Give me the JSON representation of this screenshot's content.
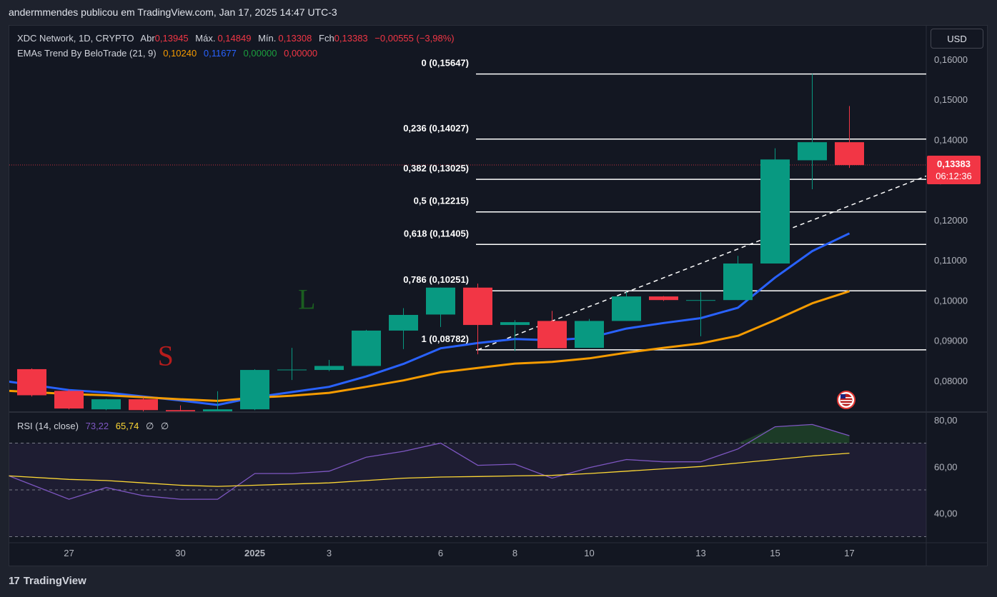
{
  "header": {
    "publish_line": "andermmendes publicou em TradingView.com, Jan 17, 2025 14:47 UTC-3"
  },
  "legend": {
    "symbol": "XDC Network, 1D, CRYPTO",
    "open_label": "Abr",
    "open_value": "0,13945",
    "high_label": "Máx.",
    "high_value": "0,14849",
    "low_label": "Mín.",
    "low_value": "0,13308",
    "close_label": "Fch",
    "close_value": "0,13383",
    "change": "−0,00555 (−3,98%)",
    "indicator_name": "EMAs Trend By BeloTrade (21, 9)",
    "ema21_value": "0,10240",
    "ema9_value": "0,11677",
    "extra1": "0,00000",
    "extra2": "0,00000"
  },
  "rsi_legend": {
    "name": "RSI (14, close)",
    "rsi_value": "73,22",
    "ma_value": "65,74",
    "extra1": "∅",
    "extra2": "∅"
  },
  "currency_button": "USD",
  "price_tag": {
    "price": "0,13383",
    "countdown": "06:12:36"
  },
  "brand": {
    "logo": "17",
    "name": "TradingView"
  },
  "colors": {
    "up": "#089981",
    "down": "#f23645",
    "ema9": "#2962ff",
    "ema21": "#f59b00",
    "rsi": "#7e57c2",
    "rsi_ma": "#fdd835",
    "fib": "#ffffff",
    "background": "#131722"
  },
  "chart_data": {
    "type": "candlestick",
    "price_axis": {
      "ylim": [
        0.0725,
        0.1685
      ],
      "ticks": [
        "0,16000",
        "0,15000",
        "0,14000",
        "0,13000",
        "0,12000",
        "0,11000",
        "0,10000",
        "0,09000",
        "0,08000"
      ],
      "tick_values": [
        0.16,
        0.15,
        0.14,
        0.13,
        0.12,
        0.11,
        0.1,
        0.09,
        0.08
      ]
    },
    "x_axis": {
      "labels": [
        "27",
        "30",
        "2025",
        "3",
        "6",
        "8",
        "10",
        "13",
        "15",
        "17"
      ],
      "label_indices": [
        1,
        4,
        6,
        8,
        11,
        13,
        15,
        18,
        20,
        22
      ]
    },
    "candles": [
      {
        "o": 0.083,
        "h": 0.0832,
        "l": 0.0762,
        "c": 0.0765
      },
      {
        "o": 0.0776,
        "h": 0.078,
        "l": 0.073,
        "c": 0.0732
      },
      {
        "o": 0.073,
        "h": 0.0756,
        "l": 0.0728,
        "c": 0.0755
      },
      {
        "o": 0.0755,
        "h": 0.076,
        "l": 0.0725,
        "c": 0.0728
      },
      {
        "o": 0.0728,
        "h": 0.074,
        "l": 0.0726,
        "c": 0.0725
      },
      {
        "o": 0.0725,
        "h": 0.0775,
        "l": 0.072,
        "c": 0.073
      },
      {
        "o": 0.073,
        "h": 0.083,
        "l": 0.0728,
        "c": 0.0828
      },
      {
        "o": 0.0828,
        "h": 0.0883,
        "l": 0.0803,
        "c": 0.0829
      },
      {
        "o": 0.0828,
        "h": 0.0853,
        "l": 0.0825,
        "c": 0.0838
      },
      {
        "o": 0.0838,
        "h": 0.0928,
        "l": 0.0838,
        "c": 0.0926
      },
      {
        "o": 0.0926,
        "h": 0.0982,
        "l": 0.088,
        "c": 0.0965
      },
      {
        "o": 0.0966,
        "h": 0.1033,
        "l": 0.0935,
        "c": 0.1033
      },
      {
        "o": 0.1033,
        "h": 0.1043,
        "l": 0.0867,
        "c": 0.094
      },
      {
        "o": 0.094,
        "h": 0.0952,
        "l": 0.0875,
        "c": 0.0947
      },
      {
        "o": 0.095,
        "h": 0.0975,
        "l": 0.0883,
        "c": 0.0882
      },
      {
        "o": 0.0883,
        "h": 0.0955,
        "l": 0.0883,
        "c": 0.095
      },
      {
        "o": 0.095,
        "h": 0.1022,
        "l": 0.095,
        "c": 0.1011
      },
      {
        "o": 0.1011,
        "h": 0.1012,
        "l": 0.1,
        "c": 0.1002
      },
      {
        "o": 0.1002,
        "h": 0.1022,
        "l": 0.0912,
        "c": 0.1002
      },
      {
        "o": 0.1002,
        "h": 0.1112,
        "l": 0.1002,
        "c": 0.1093
      },
      {
        "o": 0.1093,
        "h": 0.138,
        "l": 0.1093,
        "c": 0.1352
      },
      {
        "o": 0.135,
        "h": 0.1565,
        "l": 0.1278,
        "c": 0.1395
      },
      {
        "o": 0.1395,
        "h": 0.1485,
        "l": 0.1331,
        "c": 0.1338
      }
    ],
    "series": [
      {
        "name": "EMA 9",
        "values": [
          0.0799,
          0.0778,
          0.0772,
          0.0762,
          0.0752,
          0.0741,
          0.076,
          0.0773,
          0.0786,
          0.0812,
          0.0843,
          0.0882,
          0.0895,
          0.0905,
          0.0902,
          0.0908,
          0.0931,
          0.0945,
          0.0957,
          0.0983,
          0.1058,
          0.1124,
          0.1168
        ]
      },
      {
        "name": "EMA 21",
        "values": [
          0.0776,
          0.0768,
          0.0765,
          0.076,
          0.0755,
          0.0751,
          0.0759,
          0.0764,
          0.0771,
          0.0786,
          0.0802,
          0.0822,
          0.0833,
          0.0844,
          0.0848,
          0.0857,
          0.0871,
          0.0883,
          0.0894,
          0.0913,
          0.0952,
          0.0994,
          0.1024
        ]
      }
    ],
    "fibonacci": [
      {
        "label": "0 (0,15647)",
        "value": 0.15647
      },
      {
        "label": "0,236 (0,14027)",
        "value": 0.14027
      },
      {
        "label": "0,382 (0,13025)",
        "value": 0.13025
      },
      {
        "label": "0,5 (0,12215)",
        "value": 0.12215
      },
      {
        "label": "0,618 (0,11405)",
        "value": 0.11405
      },
      {
        "label": "0,786 (0,10251)",
        "value": 0.10251
      },
      {
        "label": "1 (0,08782)",
        "value": 0.08782
      }
    ],
    "trendline": {
      "start_index": 12,
      "start_value": 0.08782,
      "end_index": 24.1,
      "end_value": 0.1312
    },
    "last_price_line": 0.13383,
    "markers": [
      {
        "text": "S",
        "index": 3.6,
        "value": 0.084,
        "color": "#b71c1c"
      },
      {
        "text": "L",
        "index": 7.4,
        "value": 0.098,
        "color": "#1b5e20"
      }
    ],
    "rsi": {
      "ylim": [
        28,
        83
      ],
      "ticks": [
        "80,00",
        "60,00",
        "40,00"
      ],
      "tick_values": [
        80,
        60,
        40
      ],
      "bands": [
        70,
        50,
        30
      ],
      "rsi_values": [
        56,
        46,
        51,
        47.5,
        46,
        46,
        57,
        57,
        58,
        64,
        66.5,
        70,
        60.5,
        61,
        55,
        59.5,
        63,
        62,
        62,
        67.5,
        77,
        78,
        73.2
      ],
      "ma_values": [
        56,
        54.5,
        54,
        53,
        52,
        51.5,
        52,
        52.5,
        53,
        54,
        55,
        55.5,
        55.7,
        56,
        56.2,
        57,
        58,
        59,
        60,
        61.5,
        63,
        64.5,
        65.7
      ]
    }
  }
}
